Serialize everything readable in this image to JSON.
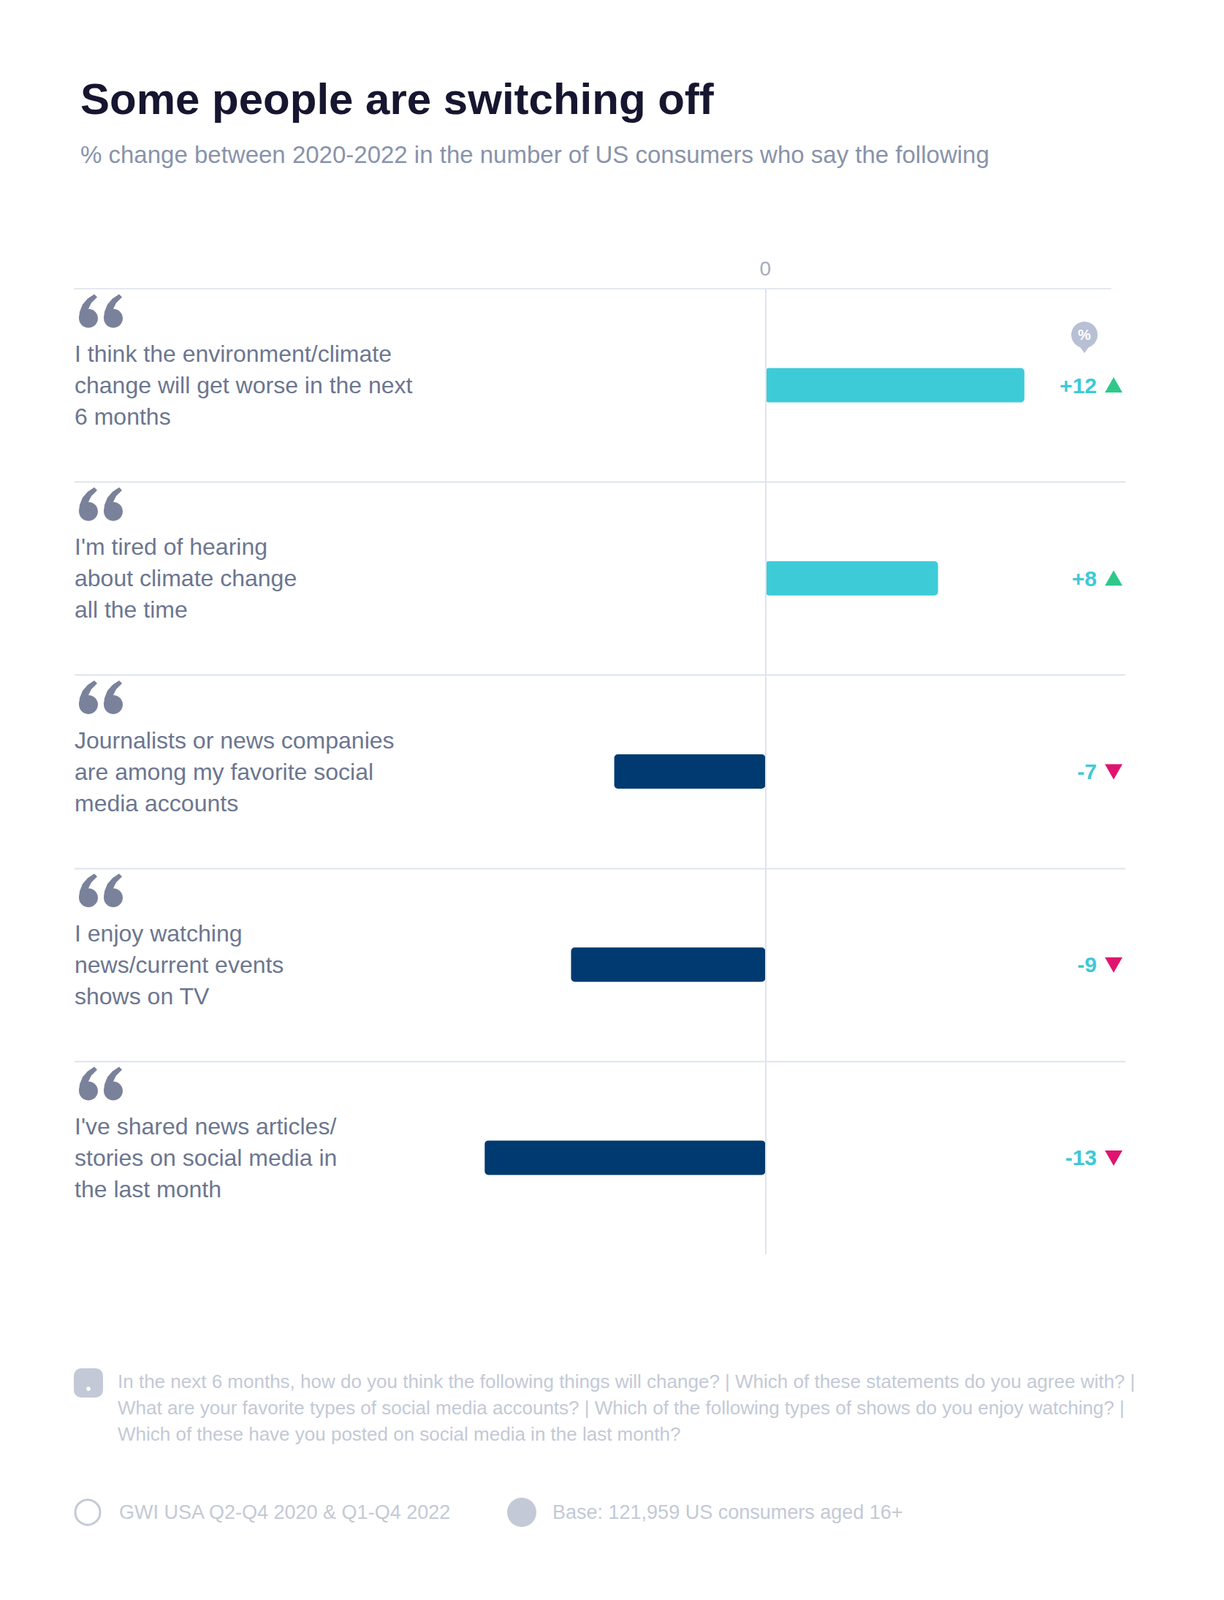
{
  "chart_data": {
    "type": "bar",
    "orientation": "horizontal",
    "title": "Some people are switching off",
    "subtitle": "% change between 2020-2022 in the number of US consumers who say the following",
    "categories": [
      "I think the environment/climate\nchange will get worse in the next\n6 months",
      "I'm tired of hearing\nabout climate change\nall the time",
      "Journalists or news companies\nare among my favorite social\nmedia accounts",
      "I enjoy watching\nnews/current events\nshows on TV",
      "I've shared news articles/\nstories on social media in\nthe last month"
    ],
    "values": [
      12,
      8,
      -7,
      -9,
      -13
    ],
    "value_labels": [
      "+12",
      "+8",
      "-7",
      "-9",
      "-13"
    ],
    "colors": [
      "#3ecbd8",
      "#3ecbd8",
      "#003a70",
      "#003a70",
      "#003a70"
    ],
    "xlim": [
      -32,
      16
    ],
    "xticks": [
      0
    ],
    "grid": true,
    "data_labels": true,
    "annotation": "%",
    "note": "In the next 6 months, how do you think the following things will change? | Which of these statements do you agree with? | What are your favorite types of social media accounts? | Which of the following types of shows do you enjoy watching? | Which of these have you posted on social media in the last month?",
    "source": "GWI USA Q2-Q4 2020 & Q1-Q4 2022",
    "base": "Base: 121,959 US consumers aged 16+"
  }
}
